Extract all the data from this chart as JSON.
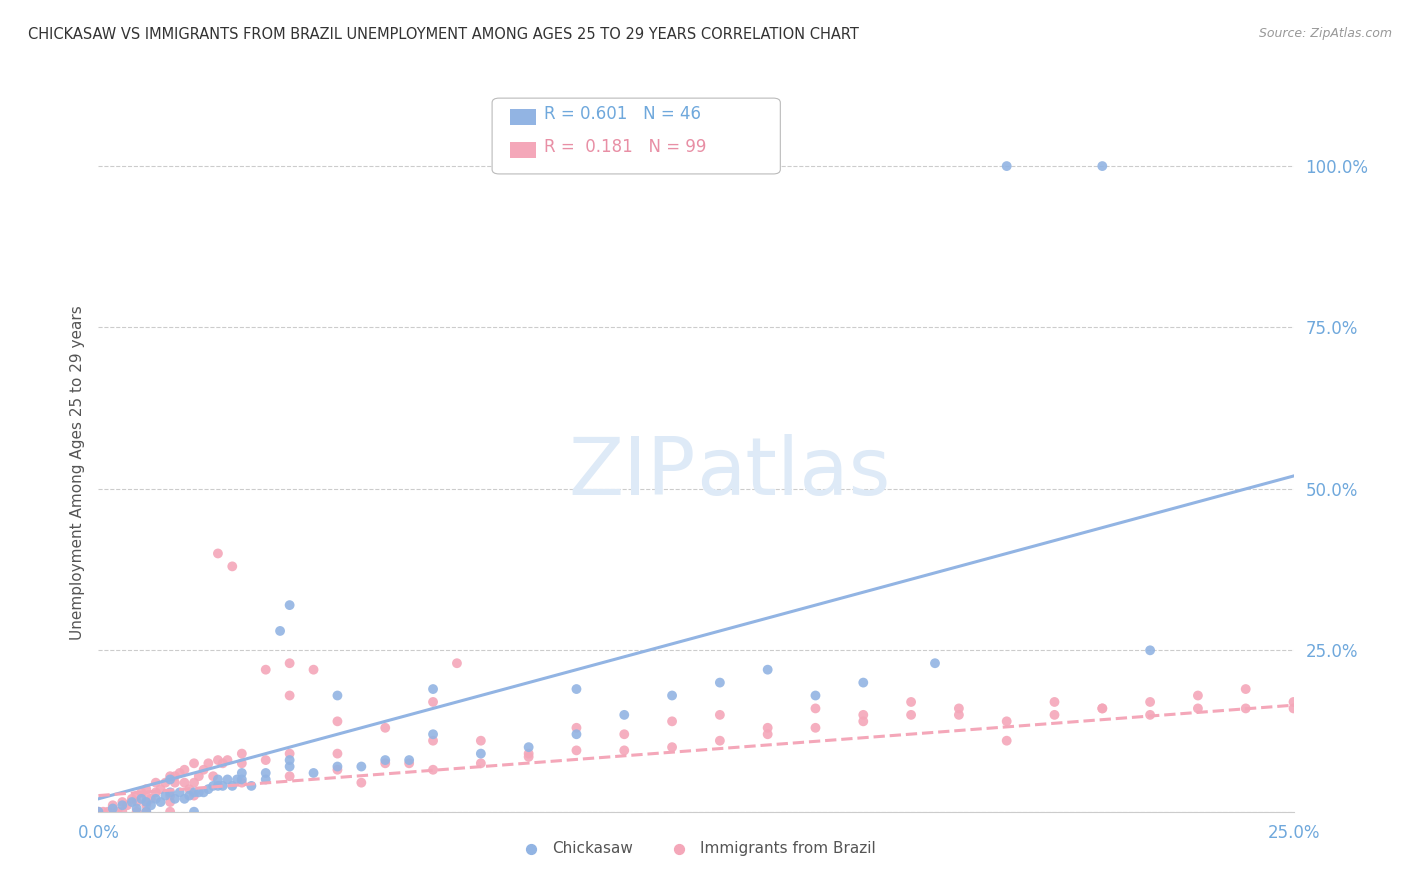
{
  "title": "CHICKASAW VS IMMIGRANTS FROM BRAZIL UNEMPLOYMENT AMONG AGES 25 TO 29 YEARS CORRELATION CHART",
  "source": "Source: ZipAtlas.com",
  "ylabel": "Unemployment Among Ages 25 to 29 years",
  "xlim": [
    0.0,
    0.25
  ],
  "ylim": [
    0.0,
    1.05
  ],
  "color_blue": "#92b4e3",
  "color_pink": "#f4a7b9",
  "watermark_color": "#deeaf7",
  "blue_trend": [
    0.0,
    0.02,
    0.25,
    0.52
  ],
  "pink_trend": [
    0.0,
    0.025,
    0.25,
    0.165
  ],
  "chickasaw_scatter": [
    [
      0.0,
      0.0
    ],
    [
      0.003,
      0.005
    ],
    [
      0.005,
      0.01
    ],
    [
      0.007,
      0.015
    ],
    [
      0.008,
      0.005
    ],
    [
      0.009,
      0.02
    ],
    [
      0.01,
      0.0
    ],
    [
      0.01,
      0.015
    ],
    [
      0.011,
      0.01
    ],
    [
      0.012,
      0.02
    ],
    [
      0.013,
      0.015
    ],
    [
      0.014,
      0.025
    ],
    [
      0.015,
      0.03
    ],
    [
      0.015,
      0.05
    ],
    [
      0.016,
      0.02
    ],
    [
      0.017,
      0.03
    ],
    [
      0.018,
      0.02
    ],
    [
      0.019,
      0.025
    ],
    [
      0.02,
      0.0
    ],
    [
      0.02,
      0.03
    ],
    [
      0.021,
      0.03
    ],
    [
      0.022,
      0.03
    ],
    [
      0.023,
      0.035
    ],
    [
      0.024,
      0.04
    ],
    [
      0.025,
      0.04
    ],
    [
      0.025,
      0.05
    ],
    [
      0.026,
      0.04
    ],
    [
      0.027,
      0.05
    ],
    [
      0.028,
      0.04
    ],
    [
      0.029,
      0.05
    ],
    [
      0.03,
      0.05
    ],
    [
      0.03,
      0.06
    ],
    [
      0.032,
      0.04
    ],
    [
      0.035,
      0.05
    ],
    [
      0.035,
      0.06
    ],
    [
      0.038,
      0.28
    ],
    [
      0.04,
      0.32
    ],
    [
      0.04,
      0.07
    ],
    [
      0.04,
      0.08
    ],
    [
      0.045,
      0.06
    ],
    [
      0.05,
      0.07
    ],
    [
      0.05,
      0.18
    ],
    [
      0.055,
      0.07
    ],
    [
      0.06,
      0.08
    ],
    [
      0.065,
      0.08
    ],
    [
      0.07,
      0.12
    ],
    [
      0.07,
      0.19
    ],
    [
      0.08,
      0.09
    ],
    [
      0.09,
      0.1
    ],
    [
      0.1,
      0.12
    ],
    [
      0.1,
      0.19
    ],
    [
      0.11,
      0.15
    ],
    [
      0.12,
      0.18
    ],
    [
      0.13,
      0.2
    ],
    [
      0.14,
      0.22
    ],
    [
      0.15,
      0.18
    ],
    [
      0.16,
      0.2
    ],
    [
      0.175,
      0.23
    ],
    [
      0.19,
      1.0
    ],
    [
      0.21,
      1.0
    ],
    [
      0.22,
      0.25
    ]
  ],
  "brazil_scatter": [
    [
      0.0,
      0.0
    ],
    [
      0.001,
      0.0
    ],
    [
      0.002,
      0.0
    ],
    [
      0.003,
      0.01
    ],
    [
      0.004,
      0.0
    ],
    [
      0.005,
      0.0
    ],
    [
      0.005,
      0.015
    ],
    [
      0.006,
      0.01
    ],
    [
      0.007,
      0.02
    ],
    [
      0.008,
      0.0
    ],
    [
      0.008,
      0.015
    ],
    [
      0.008,
      0.025
    ],
    [
      0.009,
      0.03
    ],
    [
      0.01,
      0.0
    ],
    [
      0.01,
      0.015
    ],
    [
      0.01,
      0.025
    ],
    [
      0.01,
      0.035
    ],
    [
      0.011,
      0.02
    ],
    [
      0.012,
      0.03
    ],
    [
      0.012,
      0.045
    ],
    [
      0.013,
      0.035
    ],
    [
      0.014,
      0.045
    ],
    [
      0.015,
      0.0
    ],
    [
      0.015,
      0.025
    ],
    [
      0.015,
      0.055
    ],
    [
      0.016,
      0.045
    ],
    [
      0.016,
      0.055
    ],
    [
      0.017,
      0.06
    ],
    [
      0.018,
      0.045
    ],
    [
      0.018,
      0.065
    ],
    [
      0.019,
      0.035
    ],
    [
      0.02,
      0.045
    ],
    [
      0.02,
      0.075
    ],
    [
      0.021,
      0.055
    ],
    [
      0.022,
      0.065
    ],
    [
      0.023,
      0.075
    ],
    [
      0.024,
      0.055
    ],
    [
      0.025,
      0.08
    ],
    [
      0.025,
      0.4
    ],
    [
      0.026,
      0.075
    ],
    [
      0.027,
      0.08
    ],
    [
      0.028,
      0.38
    ],
    [
      0.03,
      0.075
    ],
    [
      0.03,
      0.09
    ],
    [
      0.035,
      0.08
    ],
    [
      0.035,
      0.22
    ],
    [
      0.04,
      0.09
    ],
    [
      0.04,
      0.18
    ],
    [
      0.04,
      0.23
    ],
    [
      0.045,
      0.22
    ],
    [
      0.05,
      0.09
    ],
    [
      0.05,
      0.14
    ],
    [
      0.055,
      0.045
    ],
    [
      0.06,
      0.13
    ],
    [
      0.065,
      0.075
    ],
    [
      0.07,
      0.11
    ],
    [
      0.07,
      0.17
    ],
    [
      0.075,
      0.23
    ],
    [
      0.08,
      0.11
    ],
    [
      0.09,
      0.09
    ],
    [
      0.1,
      0.13
    ],
    [
      0.11,
      0.12
    ],
    [
      0.12,
      0.14
    ],
    [
      0.13,
      0.15
    ],
    [
      0.14,
      0.13
    ],
    [
      0.15,
      0.16
    ],
    [
      0.16,
      0.15
    ],
    [
      0.17,
      0.17
    ],
    [
      0.18,
      0.15
    ],
    [
      0.19,
      0.11
    ],
    [
      0.2,
      0.17
    ],
    [
      0.21,
      0.16
    ],
    [
      0.22,
      0.17
    ],
    [
      0.23,
      0.18
    ],
    [
      0.24,
      0.19
    ],
    [
      0.25,
      0.16
    ],
    [
      0.03,
      0.045
    ],
    [
      0.04,
      0.055
    ],
    [
      0.05,
      0.065
    ],
    [
      0.06,
      0.075
    ],
    [
      0.07,
      0.065
    ],
    [
      0.08,
      0.075
    ],
    [
      0.09,
      0.085
    ],
    [
      0.1,
      0.095
    ],
    [
      0.11,
      0.095
    ],
    [
      0.12,
      0.1
    ],
    [
      0.13,
      0.11
    ],
    [
      0.14,
      0.12
    ],
    [
      0.15,
      0.13
    ],
    [
      0.16,
      0.14
    ],
    [
      0.17,
      0.15
    ],
    [
      0.18,
      0.16
    ],
    [
      0.19,
      0.14
    ],
    [
      0.2,
      0.15
    ],
    [
      0.21,
      0.16
    ],
    [
      0.22,
      0.15
    ],
    [
      0.23,
      0.16
    ],
    [
      0.24,
      0.16
    ],
    [
      0.25,
      0.17
    ],
    [
      0.01,
      0.01
    ],
    [
      0.015,
      0.015
    ],
    [
      0.02,
      0.025
    ]
  ]
}
